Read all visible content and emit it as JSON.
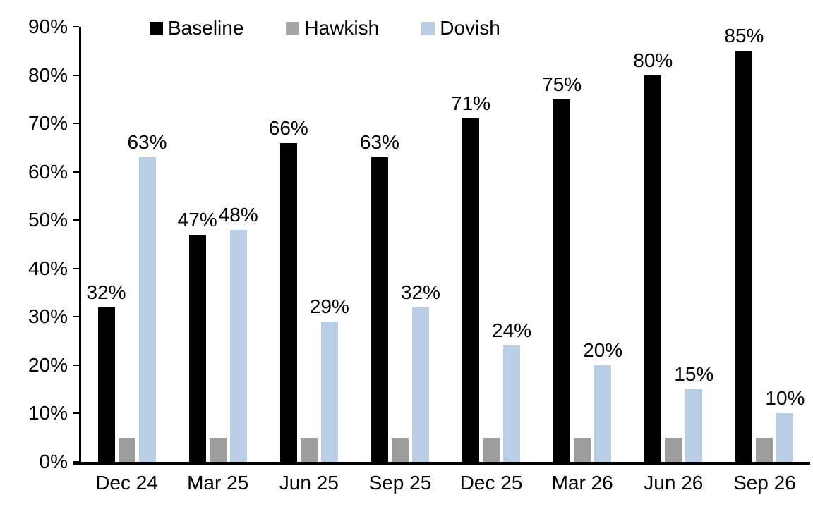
{
  "chart_data": {
    "type": "bar",
    "title": "",
    "xlabel": "",
    "ylabel": "",
    "categories": [
      "Dec 24",
      "Mar 25",
      "Jun 25",
      "Sep 25",
      "Dec 25",
      "Mar 26",
      "Jun 26",
      "Sep 26"
    ],
    "series": [
      {
        "name": "Baseline",
        "color": "#000000",
        "values": [
          32,
          47,
          66,
          63,
          71,
          75,
          80,
          85
        ],
        "labels": [
          "32%",
          "47%",
          "66%",
          "63%",
          "71%",
          "75%",
          "80%",
          "85%"
        ],
        "show_labels": true
      },
      {
        "name": "Hawkish",
        "color": "#9d9d9d",
        "legend_color": "#a6a6a6",
        "values": [
          5,
          5,
          5,
          5,
          5,
          5,
          5,
          5
        ],
        "labels": [],
        "show_labels": false
      },
      {
        "name": "Dovish",
        "color": "#b9cde5",
        "values": [
          63,
          48,
          29,
          32,
          24,
          20,
          15,
          10
        ],
        "labels": [
          "63%",
          "48%",
          "29%",
          "32%",
          "24%",
          "20%",
          "15%",
          "10%"
        ],
        "show_labels": true
      }
    ],
    "ylim": [
      0,
      90
    ],
    "ytick_step": 10,
    "ytick_labels": [
      "0%",
      "10%",
      "20%",
      "30%",
      "40%",
      "50%",
      "60%",
      "70%",
      "80%",
      "90%"
    ],
    "grid": false,
    "legend_position": "top",
    "axis_color": "#000000",
    "background_color": "#ffffff"
  }
}
